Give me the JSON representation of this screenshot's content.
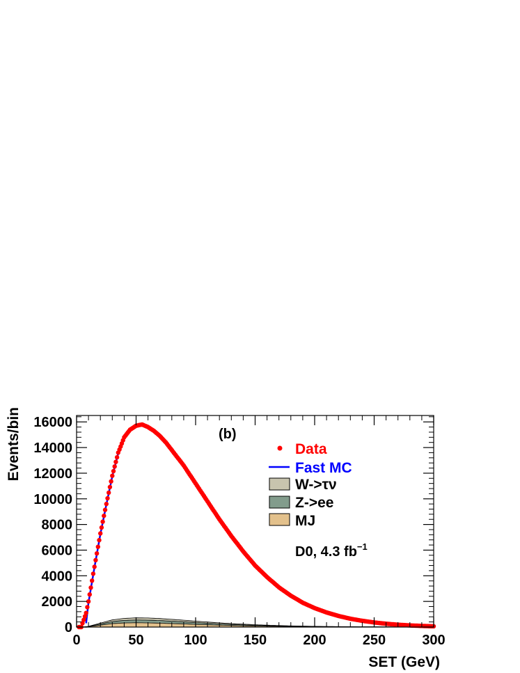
{
  "chart_data": {
    "type": "line",
    "panel_label": "(b)",
    "annotation": {
      "text": "D0, 4.3 fb",
      "superscript": "−1"
    },
    "xlabel": "SET (GeV)",
    "ylabel": "Events/bin",
    "xlim": [
      0,
      300
    ],
    "ylim": [
      0,
      16500
    ],
    "x_ticks": [
      0,
      50,
      100,
      150,
      200,
      250,
      300
    ],
    "y_ticks": [
      0,
      2000,
      4000,
      6000,
      8000,
      10000,
      12000,
      14000,
      16000
    ],
    "grid": false,
    "legend_position": "top-right",
    "colors": {
      "data": "#ff0000",
      "fast_mc": "#0000ff",
      "w_tau_nu": "#c8c4ae",
      "z_ee": "#829c8c",
      "mj": "#e3c18c"
    },
    "legend": [
      {
        "key": "data",
        "label": "Data",
        "symbol": "marker",
        "color": "#ff0000"
      },
      {
        "key": "fast_mc",
        "label": "Fast MC",
        "symbol": "line",
        "color": "#0000ff"
      },
      {
        "key": "w_tau_nu",
        "label": "W->τν",
        "symbol": "box",
        "color": "#c8c4ae"
      },
      {
        "key": "z_ee",
        "label": "Z->ee",
        "symbol": "box",
        "color": "#829c8c"
      },
      {
        "key": "mj",
        "label": "MJ",
        "symbol": "box",
        "color": "#e3c18c"
      }
    ],
    "series": [
      {
        "name": "Data",
        "kind": "points",
        "x": [
          5,
          8,
          10,
          15,
          20,
          25,
          30,
          35,
          40,
          45,
          50,
          55,
          60,
          65,
          70,
          75,
          80,
          85,
          90,
          100,
          110,
          120,
          130,
          140,
          150,
          160,
          170,
          180,
          190,
          200,
          210,
          220,
          230,
          240,
          250,
          260,
          270,
          280,
          290,
          300
        ],
        "y": [
          300,
          1100,
          2000,
          4700,
          7300,
          9600,
          11800,
          13600,
          14800,
          15400,
          15700,
          15800,
          15600,
          15300,
          14900,
          14400,
          13800,
          13200,
          12600,
          11200,
          9800,
          8400,
          7100,
          5900,
          4800,
          3900,
          3100,
          2450,
          1900,
          1480,
          1140,
          870,
          650,
          490,
          360,
          260,
          185,
          130,
          90,
          60
        ]
      },
      {
        "name": "Fast MC",
        "kind": "line",
        "x": [
          8,
          10,
          15,
          20,
          25,
          30,
          35,
          40,
          45,
          50,
          55,
          60,
          65,
          70,
          75,
          80,
          85,
          90,
          100,
          110,
          120,
          130,
          140,
          150,
          160,
          170,
          180,
          190,
          200,
          210,
          220,
          230,
          240,
          250,
          260,
          270,
          280,
          290,
          300
        ],
        "y": [
          300,
          1900,
          4650,
          7250,
          9550,
          11750,
          13550,
          14750,
          15350,
          15700,
          15850,
          15650,
          15320,
          14900,
          14400,
          13820,
          13220,
          12620,
          11200,
          9780,
          8400,
          7100,
          5900,
          4800,
          3900,
          3120,
          2460,
          1920,
          1490,
          1150,
          880,
          660,
          495,
          365,
          265,
          190,
          135,
          95,
          65
        ]
      },
      {
        "name": "W->τν",
        "kind": "stack",
        "x": [
          5,
          10,
          20,
          30,
          40,
          50,
          60,
          70,
          80,
          90,
          100,
          110,
          120,
          130,
          140,
          150,
          160,
          170,
          180,
          190,
          200,
          220,
          240,
          260,
          280,
          300
        ],
        "y": [
          0,
          10,
          70,
          130,
          160,
          170,
          170,
          160,
          145,
          130,
          110,
          95,
          80,
          65,
          55,
          45,
          36,
          28,
          22,
          17,
          13,
          8,
          5,
          3,
          2,
          1
        ]
      },
      {
        "name": "Z->ee",
        "kind": "stack",
        "x": [
          5,
          10,
          20,
          30,
          40,
          50,
          60,
          70,
          80,
          90,
          100,
          110,
          120,
          130,
          140,
          150,
          160,
          170,
          180,
          190,
          200,
          220,
          240,
          260,
          280,
          300
        ],
        "y": [
          0,
          15,
          90,
          160,
          200,
          215,
          215,
          205,
          185,
          165,
          140,
          120,
          100,
          82,
          68,
          55,
          44,
          35,
          27,
          21,
          16,
          10,
          6,
          4,
          2,
          1
        ]
      },
      {
        "name": "MJ",
        "kind": "stack",
        "x": [
          5,
          10,
          20,
          30,
          40,
          50,
          60,
          70,
          80,
          90,
          100,
          110,
          120,
          130,
          140,
          150,
          160,
          170,
          180,
          190,
          200,
          220,
          240,
          260,
          280,
          300
        ],
        "y": [
          0,
          30,
          150,
          270,
          320,
          335,
          325,
          305,
          275,
          245,
          210,
          180,
          150,
          125,
          105,
          85,
          70,
          56,
          45,
          36,
          28,
          18,
          11,
          7,
          4,
          2
        ]
      }
    ]
  }
}
